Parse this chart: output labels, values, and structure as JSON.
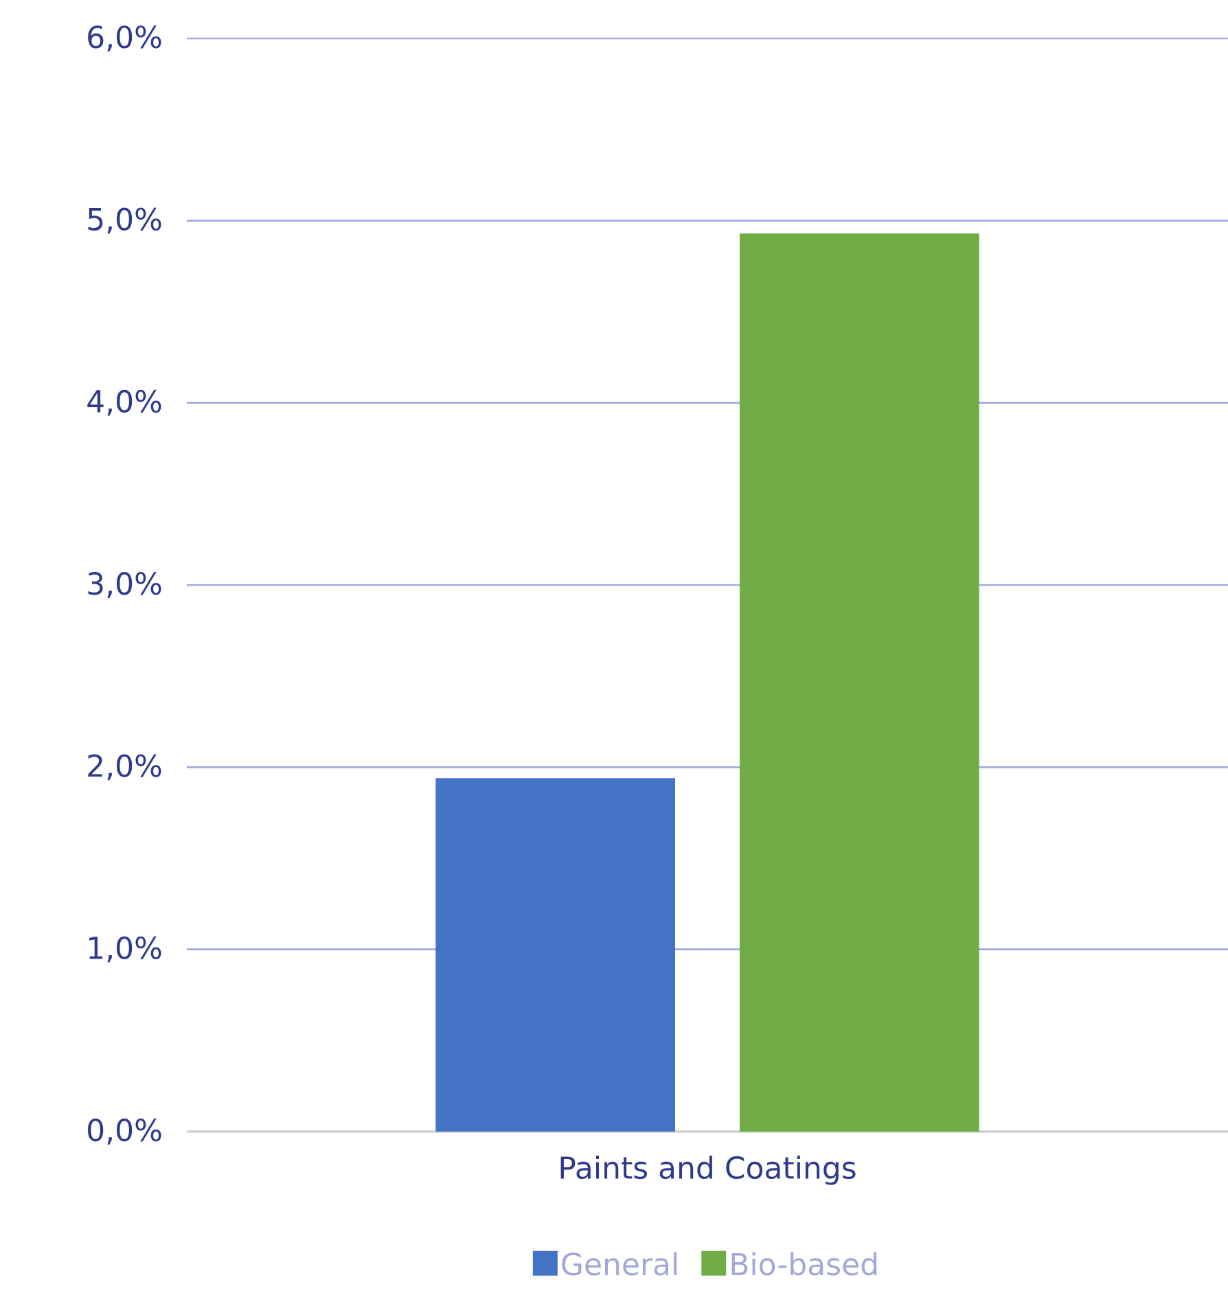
{
  "chart_data": {
    "type": "bar",
    "categories": [
      "Paints and Coatings"
    ],
    "series": [
      {
        "name": "General",
        "color": "#4472c4",
        "values": [
          1.94
        ]
      },
      {
        "name": "Bio-based",
        "color": "#70ad47",
        "values": [
          4.93
        ]
      }
    ],
    "ylim": [
      0,
      6
    ],
    "yticks": [
      {
        "value": 0,
        "label": "0,0%"
      },
      {
        "value": 1,
        "label": "1,0%"
      },
      {
        "value": 2,
        "label": "2,0%"
      },
      {
        "value": 3,
        "label": "3,0%"
      },
      {
        "value": 4,
        "label": "4,0%"
      },
      {
        "value": 5,
        "label": "5,0%"
      },
      {
        "value": 6,
        "label": "6,0%"
      }
    ],
    "grid": "y",
    "legend": "bottom"
  }
}
